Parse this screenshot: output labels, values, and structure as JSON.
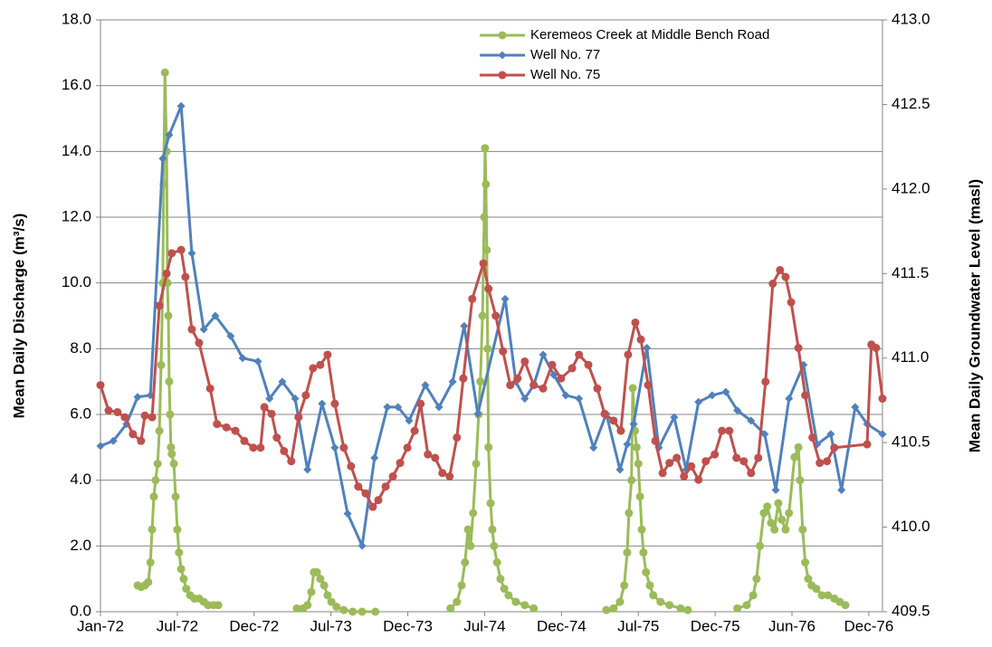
{
  "chart_data": {
    "type": "line",
    "y_label": "Mean Daily Discharge (m³/s)",
    "y2_label": "Mean Daily Groundwater Level (masl)",
    "xlim": [
      0,
      1832
    ],
    "xticks": [
      {
        "value": 0,
        "label": "Jan-72"
      },
      {
        "value": 180,
        "label": "Jul-72"
      },
      {
        "value": 360,
        "label": "Dec-72"
      },
      {
        "value": 540,
        "label": "Jul-73"
      },
      {
        "value": 720,
        "label": "Dec-73"
      },
      {
        "value": 900,
        "label": "Jul-74"
      },
      {
        "value": 1080,
        "label": "Dec-74"
      },
      {
        "value": 1260,
        "label": "Jul-75"
      },
      {
        "value": 1440,
        "label": "Dec-75"
      },
      {
        "value": 1620,
        "label": "Jun-76"
      },
      {
        "value": 1800,
        "label": "Dec-76"
      }
    ],
    "ylim": [
      0,
      18
    ],
    "yticks": [
      {
        "value": 0,
        "label": "0.0"
      },
      {
        "value": 2,
        "label": "2.0"
      },
      {
        "value": 4,
        "label": "4.0"
      },
      {
        "value": 6,
        "label": "6.0"
      },
      {
        "value": 8,
        "label": "8.0"
      },
      {
        "value": 10,
        "label": "10.0"
      },
      {
        "value": 12,
        "label": "12.0"
      },
      {
        "value": 14,
        "label": "14.0"
      },
      {
        "value": 16,
        "label": "16.0"
      },
      {
        "value": 18,
        "label": "18.0"
      }
    ],
    "y2lim": [
      409.5,
      413
    ],
    "y2ticks": [
      409.5,
      {
        "value": 410,
        "label": "410.0"
      },
      410.5,
      {
        "value": 411,
        "label": "411.0"
      },
      411.5,
      {
        "value": 412,
        "label": "412.0"
      },
      412.5,
      {
        "value": 413,
        "label": "413.0"
      }
    ],
    "grid": true,
    "legend": "upper right",
    "series": [
      {
        "name": "Keremeos Creek at Middle Bench Road",
        "color": "#9bbb59",
        "marker": "circle",
        "axis": "y",
        "x": [
          87,
          95,
          104,
          112,
          117,
          121,
          125,
          129,
          134,
          138,
          142,
          146,
          148,
          151,
          155,
          157,
          159,
          161,
          163,
          165,
          167,
          172,
          176,
          180,
          184,
          189,
          195,
          201,
          210,
          220,
          231,
          242,
          252,
          265,
          276,
          null,
          460,
          475,
          485,
          494,
          500,
          507,
          515,
          524,
          532,
          541,
          553,
          570,
          591,
          613,
          644,
          null,
          820,
          835,
          846,
          854,
          861,
          867,
          873,
          880,
          886,
          890,
          895,
          899,
          901,
          903,
          905,
          907,
          909,
          914,
          918,
          922,
          929,
          937,
          946,
          956,
          973,
          994,
          1015,
          null,
          1185,
          1202,
          1217,
          1227,
          1234,
          1238,
          1244,
          1247,
          1252,
          1256,
          1260,
          1264,
          1268,
          1272,
          1278,
          1287,
          1295,
          1312,
          1333,
          1359,
          1376,
          null,
          1492,
          1514,
          1529,
          1537,
          1545,
          1554,
          1562,
          1571,
          1579,
          1588,
          1596,
          1605,
          1613,
          1626,
          1635,
          1639,
          1645,
          1651,
          1658,
          1666,
          1677,
          1690,
          1704,
          1719,
          1732,
          1745
        ],
        "values": [
          0.8,
          0.75,
          0.8,
          0.9,
          1.5,
          2.5,
          3.5,
          4,
          4.5,
          5.5,
          7.5,
          10,
          13,
          16.4,
          14,
          10,
          9,
          7,
          6,
          5,
          4.8,
          4.5,
          3.5,
          2.5,
          1.8,
          1.3,
          1,
          0.7,
          0.5,
          0.4,
          0.4,
          0.3,
          0.2,
          0.2,
          0.2,
          null,
          0.1,
          0.1,
          0.2,
          0.6,
          1.2,
          1.2,
          1,
          0.8,
          0.5,
          0.3,
          0.15,
          0.05,
          0,
          0,
          0,
          null,
          0.1,
          0.3,
          0.8,
          1.5,
          2.5,
          2,
          3,
          4.5,
          6,
          7,
          9,
          12,
          14.1,
          13,
          11,
          8,
          5,
          3.3,
          2.5,
          2,
          1.5,
          1,
          0.7,
          0.5,
          0.3,
          0.2,
          0.1,
          null,
          0.05,
          0.1,
          0.3,
          0.8,
          1.8,
          3,
          4,
          6.8,
          5.5,
          5,
          4.5,
          3.5,
          2.5,
          1.8,
          1.2,
          0.8,
          0.5,
          0.3,
          0.2,
          0.1,
          0.05,
          null,
          0.1,
          0.2,
          0.5,
          1,
          2,
          3,
          3.2,
          2.7,
          2.5,
          3.3,
          2.8,
          2.5,
          3,
          4.7,
          5,
          4,
          2.5,
          1.5,
          1,
          0.8,
          0.7,
          0.5,
          0.5,
          0.4,
          0.3,
          0.2
        ]
      },
      {
        "name": "Well No. 77",
        "color": "#4f81bd",
        "marker": "diamond",
        "axis": "y2",
        "x": [
          0,
          30,
          61,
          87,
          117,
          146,
          161,
          189,
          214,
          242,
          269,
          305,
          333,
          369,
          396,
          426,
          456,
          485,
          519,
          549,
          579,
          613,
          642,
          672,
          697,
          723,
          761,
          793,
          825,
          852,
          884,
          948,
          973,
          994,
          1015,
          1037,
          1062,
          1090,
          1121,
          1155,
          1185,
          1217,
          1234,
          1249,
          1280,
          1308,
          1344,
          1372,
          1401,
          1433,
          1465,
          1492,
          1524,
          1556,
          1582,
          1613,
          1647,
          1679,
          1711,
          1736,
          1768,
          1796,
          1832
        ],
        "values": [
          410.48,
          410.51,
          410.61,
          410.77,
          410.78,
          412.18,
          412.32,
          412.49,
          411.62,
          411.17,
          411.25,
          411.13,
          411.0,
          410.98,
          410.76,
          410.86,
          410.76,
          410.34,
          410.73,
          410.47,
          410.08,
          409.89,
          410.41,
          410.71,
          410.71,
          410.63,
          410.84,
          410.71,
          410.86,
          411.19,
          410.67,
          411.35,
          410.86,
          410.76,
          410.84,
          411.02,
          410.9,
          410.78,
          410.76,
          410.47,
          410.67,
          410.34,
          410.49,
          410.61,
          411.06,
          410.47,
          410.65,
          410.34,
          410.74,
          410.78,
          410.8,
          410.69,
          410.63,
          410.55,
          410.22,
          410.76,
          410.96,
          410.49,
          410.55,
          410.22,
          410.71,
          410.61,
          410.55
        ]
      },
      {
        "name": "Well No. 75",
        "color": "#c0504d",
        "marker": "circle",
        "axis": "y2",
        "x": [
          0,
          19,
          40,
          57,
          76,
          95,
          104,
          121,
          138,
          155,
          167,
          189,
          199,
          214,
          231,
          257,
          273,
          295,
          316,
          337,
          358,
          375,
          384,
          401,
          413,
          430,
          447,
          464,
          481,
          498,
          515,
          532,
          549,
          570,
          587,
          604,
          621,
          638,
          651,
          668,
          685,
          702,
          719,
          736,
          750,
          767,
          784,
          801,
          818,
          835,
          850,
          871,
          897,
          909,
          926,
          943,
          960,
          977,
          994,
          1015,
          1037,
          1058,
          1079,
          1105,
          1121,
          1143,
          1164,
          1181,
          1202,
          1219,
          1236,
          1253,
          1266,
          1283,
          1300,
          1317,
          1333,
          1350,
          1367,
          1384,
          1401,
          1418,
          1439,
          1456,
          1473,
          1490,
          1507,
          1524,
          1541,
          1558,
          1575,
          1592,
          1605,
          1618,
          1635,
          1651,
          1668,
          1685,
          1702,
          1719,
          1796,
          1806,
          1817,
          1832
        ],
        "values": [
          410.84,
          410.69,
          410.68,
          410.65,
          410.55,
          410.51,
          410.66,
          410.65,
          411.31,
          411.5,
          411.62,
          411.64,
          411.48,
          411.17,
          411.09,
          410.82,
          410.61,
          410.59,
          410.57,
          410.51,
          410.47,
          410.47,
          410.71,
          410.67,
          410.53,
          410.45,
          410.39,
          410.65,
          410.78,
          410.94,
          410.96,
          411.02,
          410.73,
          410.47,
          410.36,
          410.24,
          410.2,
          410.12,
          410.16,
          410.24,
          410.3,
          410.38,
          410.47,
          410.57,
          410.73,
          410.43,
          410.41,
          410.32,
          410.3,
          410.53,
          410.88,
          411.35,
          411.56,
          411.41,
          411.25,
          411.04,
          410.84,
          410.88,
          410.98,
          410.84,
          410.82,
          410.96,
          410.88,
          410.94,
          411.02,
          410.96,
          410.82,
          410.67,
          410.63,
          410.57,
          411.02,
          411.21,
          411.11,
          410.84,
          410.51,
          410.32,
          410.38,
          410.41,
          410.3,
          410.36,
          410.28,
          410.39,
          410.43,
          410.57,
          410.57,
          410.41,
          410.39,
          410.32,
          410.41,
          410.86,
          411.44,
          411.52,
          411.48,
          411.33,
          411.06,
          410.78,
          410.53,
          410.38,
          410.39,
          410.47,
          410.49,
          411.08,
          411.06,
          410.76
        ]
      }
    ]
  }
}
